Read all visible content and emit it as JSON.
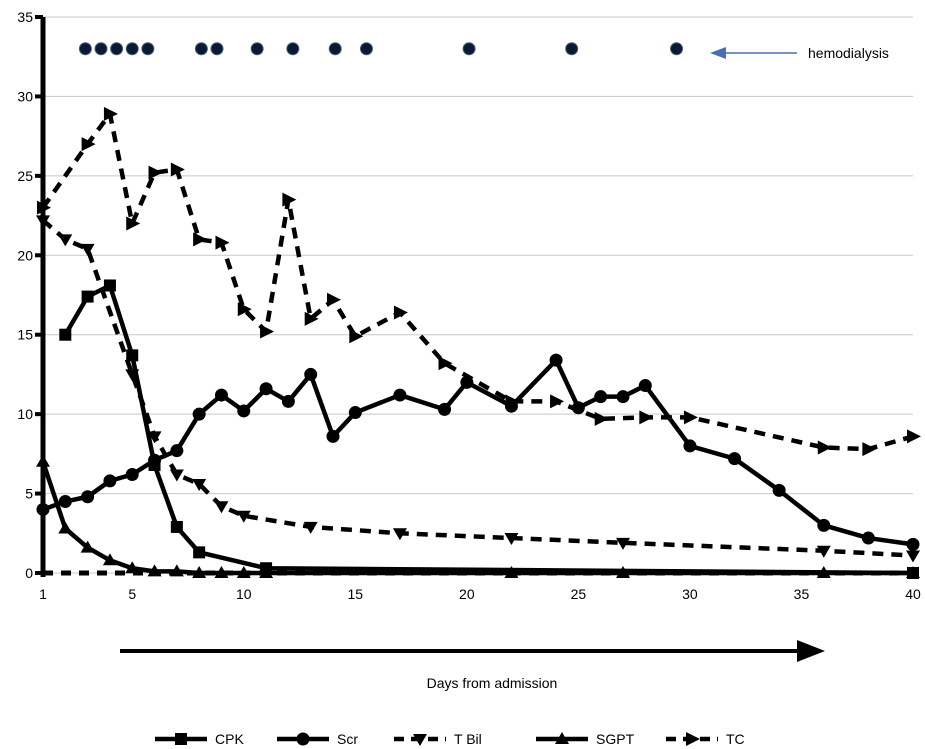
{
  "chart_data": {
    "type": "line",
    "title": "",
    "xlabel": "Days from admission",
    "ylabel": "",
    "xlim": [
      1,
      40
    ],
    "ylim": [
      0,
      35
    ],
    "x_ticks": [
      1,
      5,
      10,
      15,
      20,
      25,
      30,
      35,
      40
    ],
    "y_ticks": [
      0,
      5,
      10,
      15,
      20,
      25,
      30,
      35
    ],
    "grid": "horizontal",
    "legend_position": "bottom",
    "annotation": {
      "text": "hemodialysis",
      "y": 33,
      "x": [
        2.9,
        3.6,
        4.3,
        5.0,
        5.7,
        8.1,
        8.8,
        10.6,
        12.2,
        14.1,
        15.5,
        20.1,
        24.7,
        29.4
      ]
    },
    "series": [
      {
        "name": "CPK",
        "style": "solid",
        "marker": "square",
        "x": [
          2,
          3,
          4,
          5,
          6,
          7,
          8,
          11,
          40
        ],
        "y": [
          15,
          17.4,
          18.1,
          13.7,
          6.8,
          2.9,
          1.3,
          0.3,
          0
        ]
      },
      {
        "name": "Scr",
        "style": "solid",
        "marker": "circle",
        "x": [
          1,
          2,
          3,
          4,
          5,
          6,
          7,
          8,
          9,
          10,
          11,
          12,
          13,
          14,
          15,
          17,
          19,
          20,
          22,
          24,
          25,
          26,
          27,
          28,
          30,
          32,
          34,
          36,
          38,
          40
        ],
        "y": [
          4,
          4.5,
          4.8,
          5.8,
          6.2,
          7.1,
          7.7,
          10,
          11.2,
          10.2,
          11.6,
          10.8,
          12.5,
          8.6,
          10.1,
          11.2,
          10.3,
          12,
          10.5,
          13.4,
          10.4,
          11.1,
          11.1,
          11.8,
          8,
          7.2,
          5.2,
          3,
          2.2,
          1.8
        ]
      },
      {
        "name": "T Bil",
        "style": "dashed",
        "marker": "triangle-down",
        "x": [
          1,
          2,
          3,
          5,
          6,
          7,
          8,
          9,
          10,
          13,
          17,
          22,
          27,
          36,
          40
        ],
        "y": [
          22.2,
          21,
          20.4,
          12.5,
          8.6,
          6.2,
          5.6,
          4.2,
          3.6,
          2.9,
          2.5,
          2.2,
          1.9,
          1.4,
          1.1
        ]
      },
      {
        "name": "SGPT",
        "style": "solid",
        "marker": "triangle-up",
        "x": [
          1,
          2,
          3,
          4,
          5,
          6,
          7,
          8,
          9,
          10,
          11,
          22,
          27,
          36,
          40
        ],
        "y": [
          7,
          2.8,
          1.6,
          0.8,
          0.3,
          0.1,
          0.1,
          0,
          0,
          0,
          0,
          0,
          0,
          0,
          0
        ]
      },
      {
        "name": "TC",
        "style": "dashed",
        "marker": "triangle-right",
        "x": [
          1,
          3,
          4,
          5,
          6,
          7,
          8,
          9,
          10,
          11,
          12,
          13,
          14,
          15,
          17,
          19,
          22,
          24,
          26,
          28,
          30,
          36,
          38,
          40
        ],
        "y": [
          23,
          27,
          28.9,
          22,
          25.2,
          25.4,
          21,
          20.8,
          16.6,
          15.2,
          23.5,
          16,
          17.2,
          14.9,
          16.4,
          13.2,
          10.8,
          10.8,
          9.7,
          9.8,
          9.8,
          7.9,
          7.8,
          8.6
        ]
      }
    ]
  }
}
